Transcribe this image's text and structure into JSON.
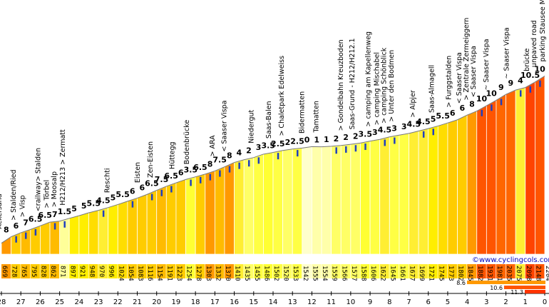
{
  "chart_data": {
    "type": "area",
    "title": "",
    "xlabel": "",
    "ylabel": "",
    "credit": "©www.cyclingcols.com",
    "x_ticks": [
      "28",
      "27",
      "26",
      "25",
      "24",
      "23",
      "22",
      "21",
      "20",
      "19",
      "18",
      "17",
      "16",
      "15",
      "14",
      "13",
      "12",
      "11",
      "10",
      "9",
      "8",
      "7",
      "6",
      "5",
      "4",
      "3",
      "2",
      "1",
      "0"
    ],
    "altitudes": [
      "669",
      "728",
      "765",
      "795",
      "828",
      "862",
      "871",
      "897",
      "921",
      "948",
      "970",
      "996",
      "1024",
      "1054",
      "1083",
      "1116",
      "1154",
      "1191",
      "1223",
      "1254",
      "1278",
      "1303",
      "1332",
      "1370",
      "1410",
      "1435",
      "1455",
      "1486",
      "1502",
      "1520",
      "1533",
      "1542",
      "1555",
      "1554",
      "1559",
      "1566",
      "1577",
      "1588",
      "1606",
      "1622",
      "1645",
      "1661",
      "1677",
      "1699",
      "1721",
      "1745",
      "1773",
      "1802",
      "1845",
      "1882",
      "1931",
      "1981",
      "2035",
      "2075",
      "2098",
      "2148",
      "2204"
    ],
    "gradients": [
      "8",
      "6",
      "7",
      "6.5",
      "6.5",
      "7",
      "1.5",
      "5",
      "5",
      "5.5",
      "4.5",
      "5",
      "5.5",
      "6",
      "6",
      "6.5",
      "7.5",
      "6.5",
      "6",
      "3.5",
      "6.5",
      "8",
      "7.5",
      "8",
      "4",
      "2",
      "3",
      "3.5",
      "2.5",
      "2",
      "2.5",
      "0",
      "1",
      "1",
      "2",
      "2",
      "2",
      "3.5",
      "3",
      "4.5",
      "3",
      "3",
      "4.5",
      "4.5",
      "5",
      "5.5",
      "6",
      "6",
      "8",
      "10",
      "10",
      "9",
      "9",
      "4",
      "10.5",
      "10",
      "11"
    ],
    "gradient_colors": [
      "#ff9900",
      "#ffcc00",
      "#ffbb00",
      "#ffcc00",
      "#ffcc00",
      "#ffbb00",
      "#ffff99",
      "#ffee00",
      "#ffee00",
      "#ffdd00",
      "#ffee33",
      "#ffee00",
      "#ffdd00",
      "#ffcc00",
      "#ffcc00",
      "#ffcc00",
      "#ffbb00",
      "#ffcc00",
      "#ffcc00",
      "#ffff33",
      "#ffcc00",
      "#ff9900",
      "#ffbb00",
      "#ff9900",
      "#ffee33",
      "#ffff66",
      "#ffff44",
      "#ffff33",
      "#ffff44",
      "#ffff66",
      "#ffff44",
      "#ffffcc",
      "#ffffaa",
      "#ffffaa",
      "#ffff66",
      "#ffff66",
      "#ffff66",
      "#ffff33",
      "#ffff44",
      "#ffee33",
      "#ffff44",
      "#ffff44",
      "#ffee33",
      "#ffee33",
      "#ffee00",
      "#ffdd00",
      "#ffcc00",
      "#ffcc00",
      "#ff9900",
      "#ff5500",
      "#ff5500",
      "#ff6600",
      "#ff6600",
      "#ffee33",
      "#ff4400",
      "#ff5500",
      "#ff3300"
    ],
    "waypoints": [
      "Ackersand",
      "> Stalden/Ried",
      "> Visp",
      "<railway> Stalden",
      "> Törbel",
      "> Moosalp",
      "H212/H213 > Zermatt",
      "Reschti",
      "Eisten",
      "Zen-Eisten",
      "Hüttegg",
      "Bodenbrücke",
      "> ARA",
      "< Saaser Vispa",
      "Niedergut",
      "Saas-Balen",
      "> Chaletpark Edelweiss",
      "Bidermatten",
      "Tamatten",
      "> Gondelbahn Kreuzboden",
      "Saas-Grund - H212/H212.1",
      "> camping am Kapellenweg",
      "> camping Mischabel",
      "> camping Schönblick",
      "> Unter den Bodmen",
      "> Alpjer",
      "Saas-Almagell",
      "> Furggstalden",
      "< Saaser Vispa",
      "> Zentrale Zermeiggern",
      "< Saaser Vispa",
      "~ Saaser Vispa",
      "~ Saaser Vispa",
      "brücke",
      "unpaved road",
      "parking Stausee Mattmark"
    ],
    "max_gradient_bars": [
      "8.6",
      "10.6",
      "11.3"
    ],
    "ylim_m": [
      640,
      2220
    ],
    "xlim_km": [
      28,
      0
    ]
  }
}
